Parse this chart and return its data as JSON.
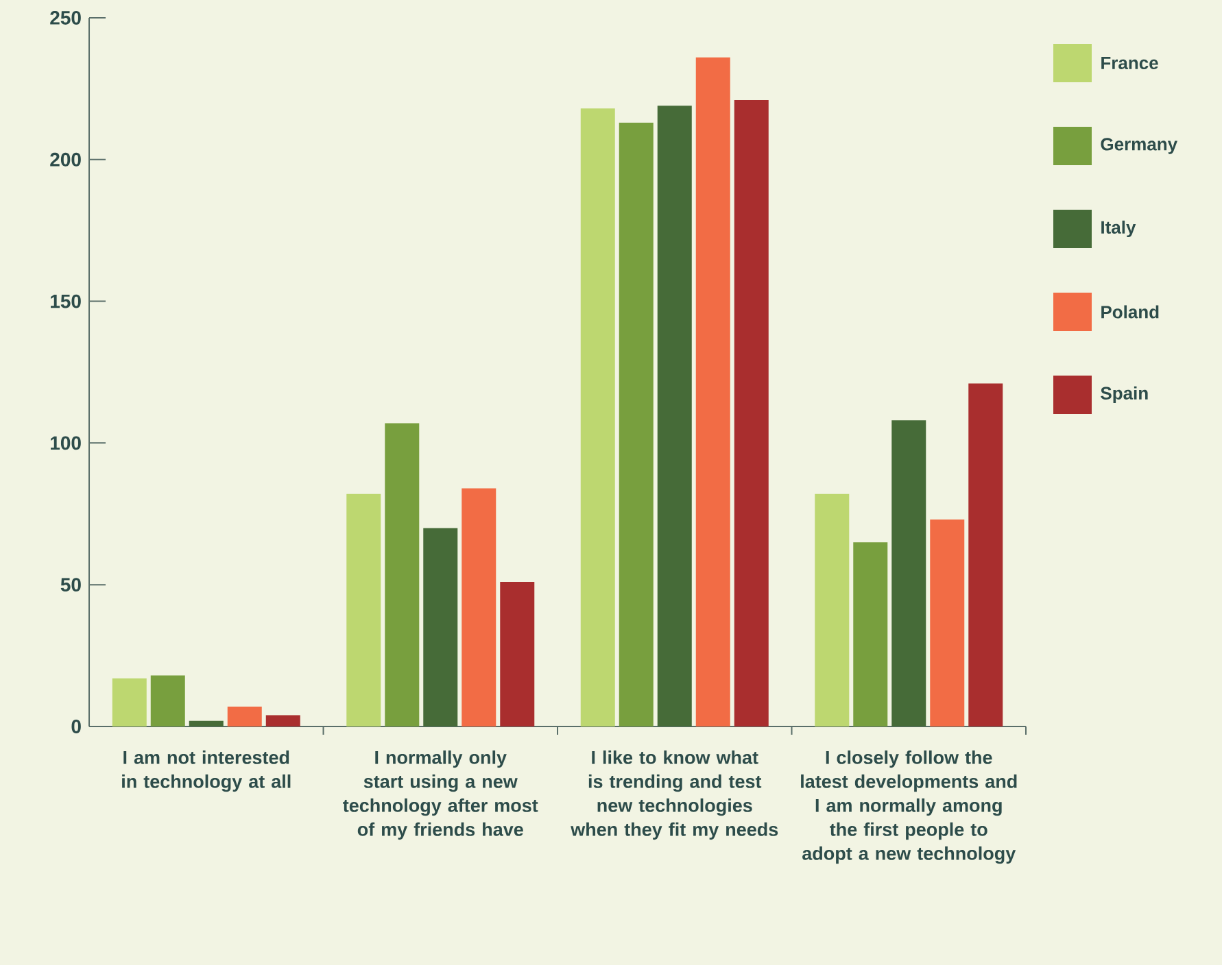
{
  "chart_data": {
    "type": "bar",
    "categories": [
      "I am not interested in technology at all",
      "I normally only start using a new technology after most of my friends have",
      "I like to know what is trending and test new technologies when they fit my needs",
      "I closely follow the latest developments and I am normally among the first people to adopt a new technology"
    ],
    "series": [
      {
        "name": "France",
        "color": "#bdd770",
        "values": [
          17,
          82,
          218,
          82
        ]
      },
      {
        "name": "Germany",
        "color": "#789f3e",
        "values": [
          18,
          107,
          213,
          65
        ]
      },
      {
        "name": "Italy",
        "color": "#466b38",
        "values": [
          2,
          70,
          219,
          108
        ]
      },
      {
        "name": "Poland",
        "color": "#f26c45",
        "values": [
          7,
          84,
          236,
          73
        ]
      },
      {
        "name": "Spain",
        "color": "#a92e2e",
        "values": [
          4,
          51,
          221,
          121
        ]
      }
    ],
    "ylim": [
      0,
      250
    ],
    "yticks": [
      0,
      50,
      100,
      150,
      200,
      250
    ],
    "grid": false,
    "legend": "top right"
  }
}
